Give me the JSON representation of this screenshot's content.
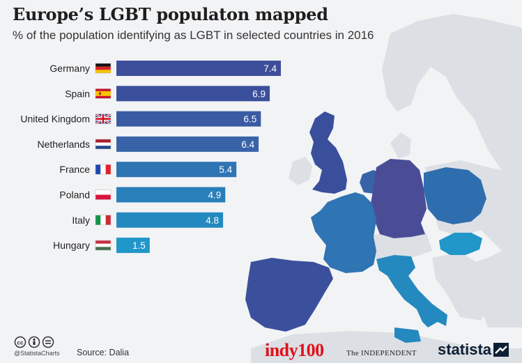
{
  "header": {
    "title": "Europe’s LGBT populaton mapped",
    "subtitle": "% of the population identifying as LGBT in selected countries in 2016"
  },
  "chart_data": {
    "type": "bar",
    "orientation": "horizontal",
    "title": "Europe’s LGBT populaton mapped",
    "subtitle": "% of the population identifying as LGBT in selected countries in 2016",
    "categories": [
      "Germany",
      "Spain",
      "United Kingdom",
      "Netherlands",
      "France",
      "Poland",
      "Italy",
      "Hungary"
    ],
    "values": [
      7.4,
      6.9,
      6.5,
      6.4,
      5.4,
      4.9,
      4.8,
      1.5
    ],
    "value_labels": [
      "7.4",
      "6.9",
      "6.5",
      "6.4",
      "5.4",
      "4.9",
      "4.8",
      "1.5"
    ],
    "bar_colors": [
      "#3d4f9a",
      "#3b509c",
      "#3a5aa3",
      "#3863a8",
      "#2f74b3",
      "#287fba",
      "#2489bf",
      "#2196c9"
    ],
    "xlim": [
      0,
      7.4
    ],
    "grid": false,
    "legend": false,
    "flags": [
      "germany-flag-icon",
      "spain-flag-icon",
      "uk-flag-icon",
      "netherlands-flag-icon",
      "france-flag-icon",
      "poland-flag-icon",
      "italy-flag-icon",
      "hungary-flag-icon"
    ]
  },
  "footer": {
    "handle": "@StatistaCharts",
    "source": "Source: Dalia",
    "brand_indy": "indy100",
    "brand_independent": "The INDEPENDENT",
    "brand_statista": "statista",
    "license_icons": [
      "cc-icon",
      "by-icon",
      "nd-icon"
    ]
  },
  "colors": {
    "background": "#f2f3f5",
    "land": "#dcdfe4",
    "germany": "#4a4d96",
    "dark_blue": "#3a4f9c",
    "mid_blue": "#2f6eae",
    "light_blue": "#2590c6",
    "indy_red": "#e0101a",
    "statista_navy": "#0d1f33"
  }
}
